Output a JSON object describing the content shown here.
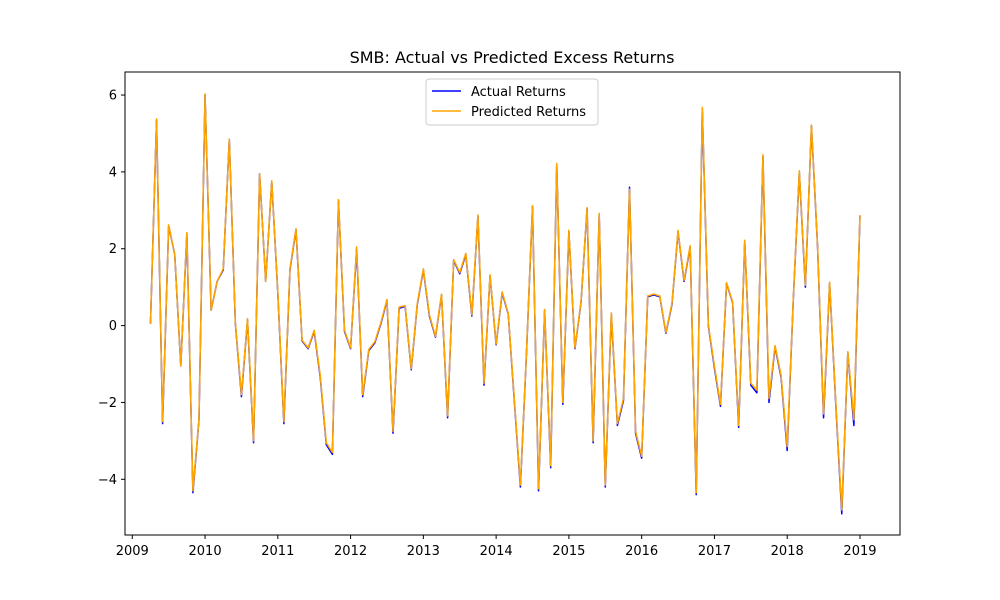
{
  "chart_data": {
    "type": "line",
    "title": "SMB: Actual vs Predicted Excess Returns",
    "xlabel": "",
    "ylabel": "",
    "xlim": [
      2008.9,
      2019.55
    ],
    "ylim": [
      -5.45,
      6.6
    ],
    "x_ticks": [
      2009,
      2010,
      2011,
      2012,
      2013,
      2014,
      2015,
      2016,
      2017,
      2018,
      2019
    ],
    "y_ticks": [
      -4,
      -2,
      0,
      2,
      4,
      6
    ],
    "x_tick_labels": [
      "2009",
      "2010",
      "2011",
      "2012",
      "2013",
      "2014",
      "2015",
      "2016",
      "2017",
      "2018",
      "2019"
    ],
    "y_tick_labels": [
      "−4",
      "−2",
      "0",
      "2",
      "4",
      "6"
    ],
    "legend_position": "upper center",
    "grid": false,
    "x_start": 2009.25,
    "x_step": 0.08333,
    "series": [
      {
        "name": "Actual Returns",
        "color": "#0000ff",
        "values": [
          0.05,
          5.35,
          -2.55,
          2.6,
          1.85,
          -1.05,
          2.4,
          -4.35,
          -2.45,
          6.0,
          0.4,
          1.15,
          1.45,
          4.85,
          0.05,
          -1.85,
          0.15,
          -3.05,
          3.95,
          1.15,
          3.75,
          0.85,
          -2.55,
          1.45,
          2.5,
          -0.4,
          -0.6,
          -0.15,
          -1.35,
          -3.1,
          -3.35,
          3.25,
          -0.15,
          -0.6,
          2.0,
          -1.85,
          -0.65,
          -0.45,
          0.05,
          0.65,
          -2.8,
          0.45,
          0.5,
          -1.15,
          0.55,
          1.45,
          0.25,
          -0.3,
          0.8,
          -2.4,
          1.7,
          1.35,
          1.85,
          0.25,
          2.85,
          -1.55,
          1.3,
          -0.5,
          0.85,
          0.3,
          -1.95,
          -4.2,
          -0.75,
          3.1,
          -4.3,
          0.4,
          -3.7,
          4.2,
          -2.05,
          2.45,
          -0.6,
          0.6,
          3.05,
          -3.05,
          2.9,
          -4.2,
          0.3,
          -2.6,
          -1.95,
          3.6,
          -2.8,
          -3.45,
          0.75,
          0.8,
          0.75,
          -0.2,
          0.55,
          2.45,
          1.15,
          2.05,
          -4.4,
          5.65,
          0.0,
          -1.1,
          -2.1,
          1.1,
          0.6,
          -2.65,
          2.2,
          -1.55,
          -1.75,
          4.4,
          -2.0,
          -0.55,
          -1.35,
          -3.25,
          0.65,
          4.0,
          1.0,
          5.2,
          2.1,
          -2.4,
          1.1,
          -2.0,
          -4.9,
          -0.7,
          -2.6,
          2.85
        ]
      },
      {
        "name": "Predicted Returns",
        "color": "#ffa500",
        "values": [
          0.05,
          5.38,
          -2.5,
          2.62,
          1.85,
          -1.05,
          2.42,
          -4.3,
          -2.42,
          6.03,
          0.4,
          1.15,
          1.48,
          4.85,
          0.08,
          -1.8,
          0.18,
          -3.0,
          3.95,
          1.15,
          3.77,
          0.88,
          -2.5,
          1.48,
          2.52,
          -0.38,
          -0.58,
          -0.12,
          -1.3,
          -3.05,
          -3.3,
          3.28,
          -0.12,
          -0.58,
          2.05,
          -1.8,
          -0.62,
          -0.42,
          0.08,
          0.68,
          -2.75,
          0.48,
          0.52,
          -1.12,
          0.58,
          1.48,
          0.28,
          -0.28,
          0.82,
          -2.35,
          1.72,
          1.38,
          1.88,
          0.28,
          2.88,
          -1.5,
          1.32,
          -0.48,
          0.88,
          0.32,
          -1.9,
          -4.15,
          -0.72,
          3.12,
          -4.25,
          0.42,
          -3.65,
          4.22,
          -2.0,
          2.48,
          -0.58,
          0.62,
          3.07,
          -3.0,
          2.92,
          -4.15,
          0.33,
          -2.55,
          -1.9,
          3.55,
          -2.75,
          -3.4,
          0.77,
          0.82,
          0.77,
          -0.18,
          0.58,
          2.48,
          1.18,
          2.08,
          -4.35,
          5.68,
          0.03,
          -1.05,
          -2.05,
          1.12,
          0.62,
          -2.6,
          2.22,
          -1.5,
          -1.68,
          4.45,
          -1.9,
          -0.52,
          -1.3,
          -3.15,
          0.68,
          4.03,
          1.05,
          5.22,
          2.12,
          -2.3,
          1.13,
          -1.95,
          -4.8,
          -0.68,
          -2.45,
          2.88
        ]
      }
    ]
  }
}
